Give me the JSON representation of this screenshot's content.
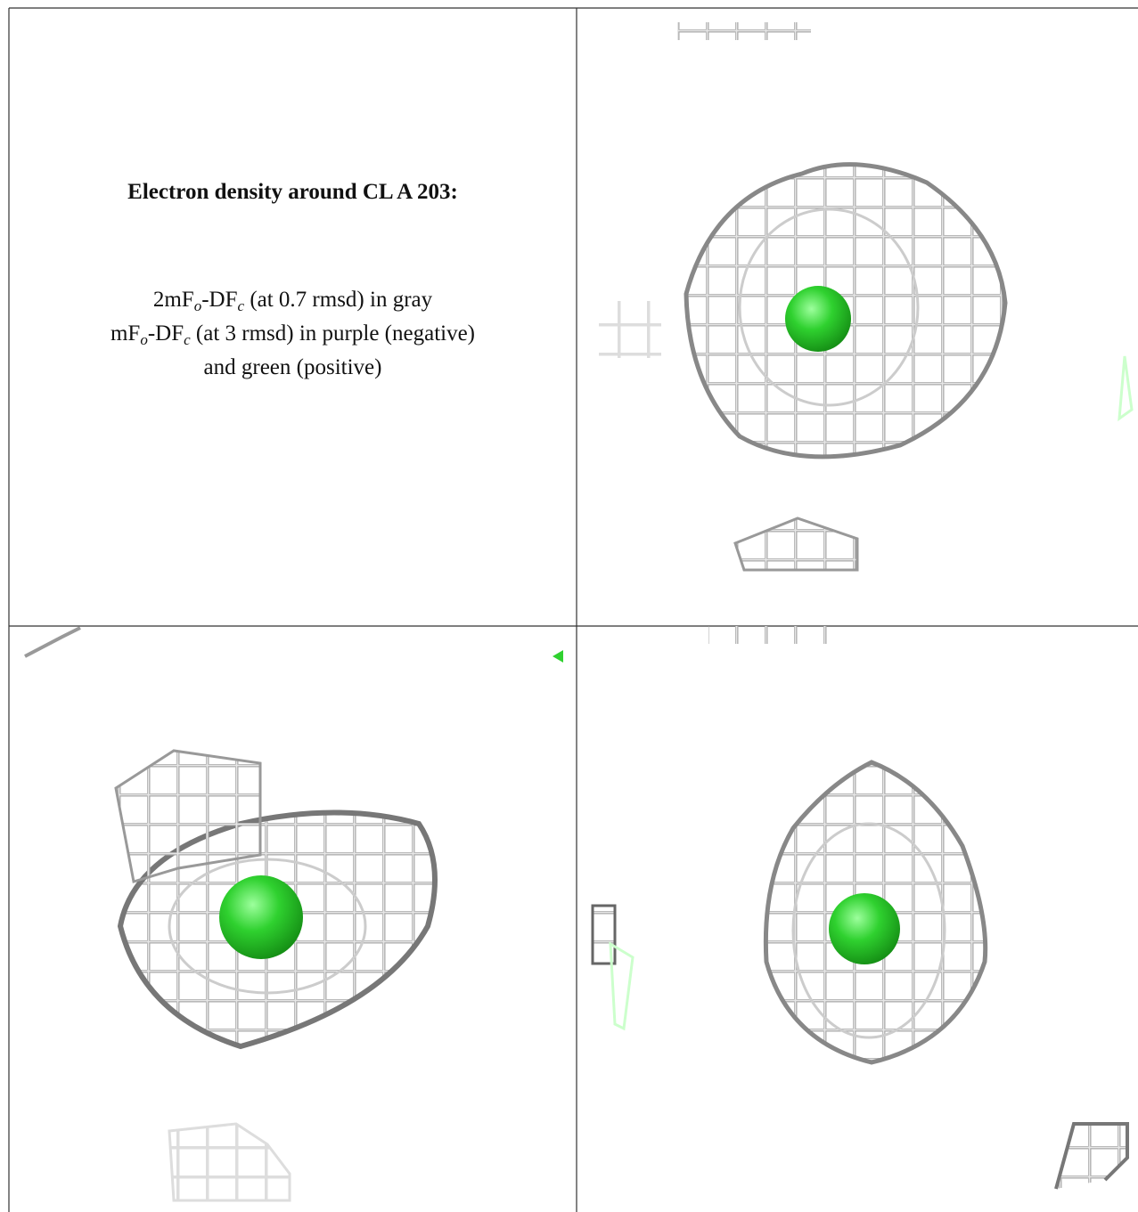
{
  "title": "Electron density around CL A 203:",
  "lines": [
    [
      "2mF",
      "o",
      "-DF",
      "c",
      " (at 0.7 rmsd) in gray"
    ],
    [
      "mF",
      "o",
      "-DF",
      "c",
      " (at 3 rmsd) in purple (negative)"
    ],
    [
      "and green (positive)"
    ]
  ]
}
